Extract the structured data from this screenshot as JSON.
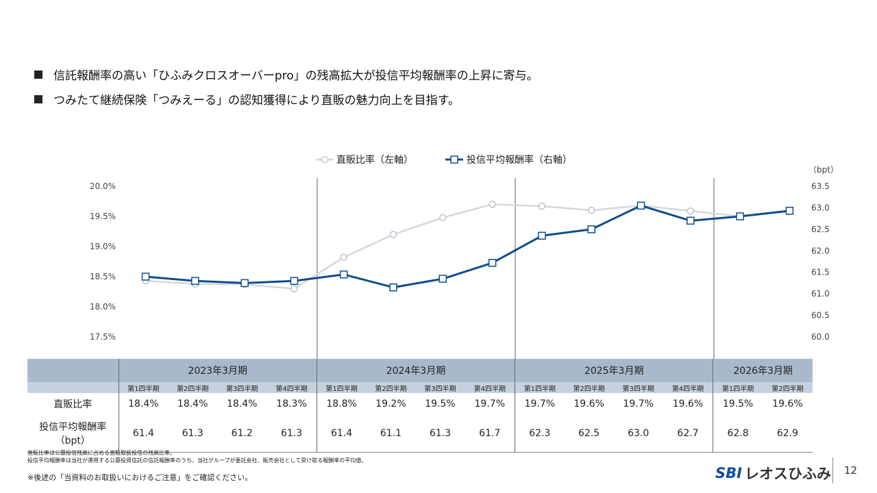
{
  "bullets": [
    "信託報酬率の高い「ひふみクロスオーバーpro」の残高拡大が投信平均報酬率の上昇に寄与。",
    "つみたて継続保険「つみえーる」の認知獲得により直販の魅力向上を目指す。"
  ],
  "chart_data": {
    "type": "line",
    "legend": [
      "直販比率（左軸）",
      "投信平均報酬率（右軸）"
    ],
    "left_axis": {
      "unit": "%",
      "ticks": [
        "20.0%",
        "19.5%",
        "19.0%",
        "18.5%",
        "18.0%",
        "17.5%"
      ],
      "range": [
        17.5,
        20.0
      ]
    },
    "right_axis": {
      "unit_label": "（bpt）",
      "ticks": [
        "63.5",
        "63.0",
        "62.5",
        "62.0",
        "61.5",
        "61.0",
        "60.5",
        "60.0"
      ],
      "range": [
        60.0,
        63.5
      ]
    },
    "series": [
      {
        "name": "直販比率（左軸）",
        "axis": "left",
        "color": "#d3d8dd",
        "values": [
          18.43,
          18.38,
          18.37,
          18.3,
          18.82,
          19.2,
          19.48,
          19.7,
          19.67,
          19.6,
          19.68,
          19.59,
          19.5,
          19.58
        ]
      },
      {
        "name": "投信平均報酬率（右軸）",
        "axis": "right",
        "color": "#0e4d8c",
        "values": [
          61.4,
          61.3,
          61.25,
          61.3,
          61.45,
          61.15,
          61.35,
          61.72,
          62.35,
          62.5,
          63.05,
          62.7,
          62.8,
          62.93
        ]
      }
    ]
  },
  "table": {
    "fiscal_years": [
      {
        "label": "2023年3月期",
        "span": 4
      },
      {
        "label": "2024年3月期",
        "span": 4
      },
      {
        "label": "2025年3月期",
        "span": 4
      },
      {
        "label": "2026年3月期",
        "span": 2
      }
    ],
    "quarters": [
      "第1四半期",
      "第2四半期",
      "第3四半期",
      "第4四半期",
      "第1四半期",
      "第2四半期",
      "第3四半期",
      "第4四半期",
      "第1四半期",
      "第2四半期",
      "第3四半期",
      "第4四半期",
      "第1四半期",
      "第2四半期"
    ],
    "rows": [
      {
        "label": "直販比率",
        "values": [
          "18.4%",
          "18.4%",
          "18.4%",
          "18.3%",
          "18.8%",
          "19.2%",
          "19.5%",
          "19.7%",
          "19.7%",
          "19.6%",
          "19.7%",
          "19.6%",
          "19.5%",
          "19.6%"
        ]
      },
      {
        "label": "投信平均報酬率\n（bpt）",
        "values": [
          "61.4",
          "61.3",
          "61.2",
          "61.3",
          "61.4",
          "61.1",
          "61.3",
          "61.7",
          "62.3",
          "62.5",
          "63.0",
          "62.7",
          "62.8",
          "62.9"
        ]
      }
    ]
  },
  "notes": [
    "直販比率は公募投信残高に占める直販取扱投信の残高比率。",
    "投信平均報酬率は当社が運用する公募投資信託の信託報酬率のうち、当社グループが委託会社、販売会社として受け取る報酬率の平均値。"
  ],
  "caution": "※後述の「当資料のお取扱いにおけるご注意」をご確認ください。",
  "logo": {
    "brand": "SBI",
    "name": "レオスひふみ"
  },
  "page_number": "12"
}
